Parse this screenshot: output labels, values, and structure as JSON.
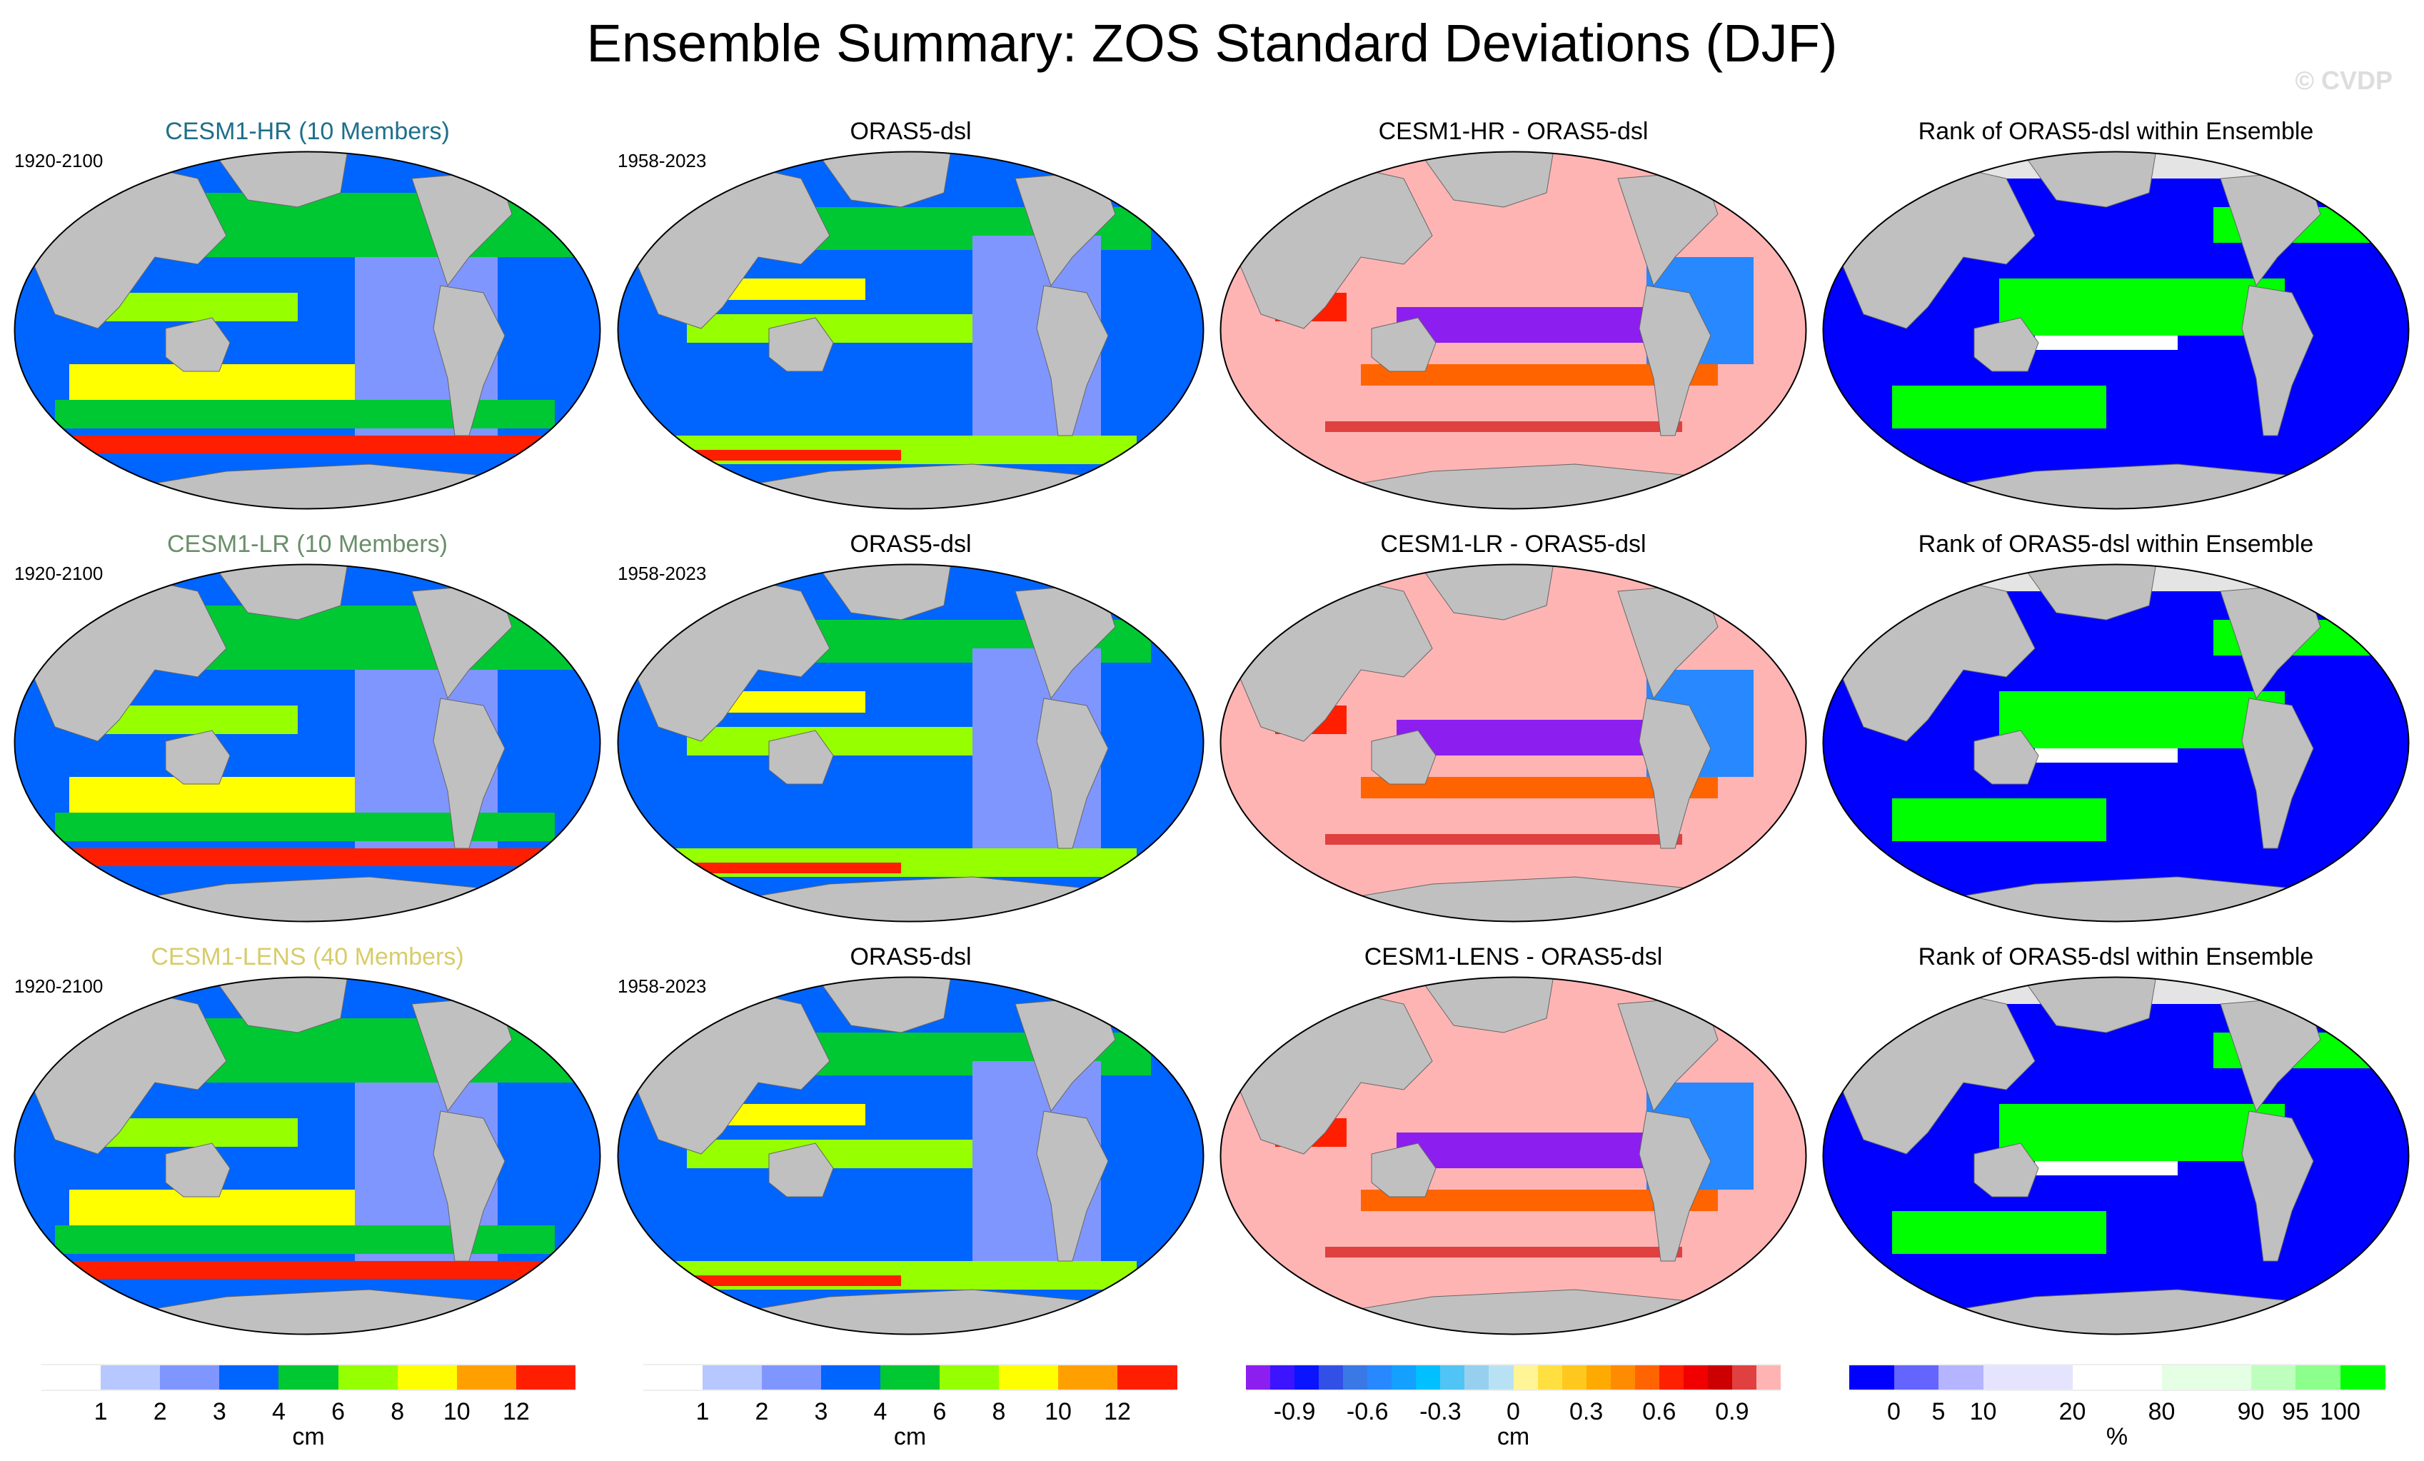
{
  "title": "Ensemble Summary: ZOS Standard Deviations (DJF)",
  "watermark": "© CVDP",
  "rows": [
    {
      "model": "CESM1-HR (10 Members)",
      "model_color": "#1f6f8b",
      "model_period": "1920-2100",
      "obs": "ORAS5-dsl",
      "obs_period": "1958-2023",
      "diff": "CESM1-HR - ORAS5-dsl",
      "rank": "Rank of ORAS5-dsl within Ensemble"
    },
    {
      "model": "CESM1-LR (10 Members)",
      "model_color": "#6a8f6a",
      "model_period": "1920-2100",
      "obs": "ORAS5-dsl",
      "obs_period": "1958-2023",
      "diff": "CESM1-LR - ORAS5-dsl",
      "rank": "Rank of ORAS5-dsl within Ensemble"
    },
    {
      "model": "CESM1-LENS (40 Members)",
      "model_color": "#d8cc6a",
      "model_period": "1920-2100",
      "obs": "ORAS5-dsl",
      "obs_period": "1958-2023",
      "diff": "CESM1-LENS - ORAS5-dsl",
      "rank": "Rank of ORAS5-dsl within Ensemble"
    }
  ],
  "chart_data": [
    {
      "type": "heatmap",
      "name": "std-colorbar",
      "unit": "cm",
      "colors": [
        "#ffffff",
        "#b6c8ff",
        "#8096ff",
        "#0064ff",
        "#00c832",
        "#96ff00",
        "#ffff00",
        "#ffa000",
        "#ff1e00"
      ],
      "labels": [
        "1",
        "2",
        "3",
        "4",
        "6",
        "8",
        "10",
        "12"
      ],
      "label_boundaries": [
        1,
        2,
        3,
        4,
        5,
        6,
        7,
        8
      ]
    },
    {
      "type": "heatmap",
      "name": "obs-colorbar",
      "unit": "cm",
      "colors": [
        "#ffffff",
        "#b6c8ff",
        "#8096ff",
        "#0064ff",
        "#00c832",
        "#96ff00",
        "#ffff00",
        "#ffa000",
        "#ff1e00"
      ],
      "labels": [
        "1",
        "2",
        "3",
        "4",
        "6",
        "8",
        "10",
        "12"
      ],
      "label_boundaries": [
        1,
        2,
        3,
        4,
        5,
        6,
        7,
        8
      ]
    },
    {
      "type": "heatmap",
      "name": "diff-colorbar",
      "unit": "cm",
      "colors": [
        "#8c1ef0",
        "#3c14ff",
        "#0a14ff",
        "#3250e6",
        "#3a78e6",
        "#2888ff",
        "#14a0ff",
        "#00c0ff",
        "#50c4f4",
        "#96d0ee",
        "#b8e2f4",
        "#fff596",
        "#ffe040",
        "#ffc81e",
        "#ffaa00",
        "#ff8c00",
        "#ff6400",
        "#ff2000",
        "#f00000",
        "#cc0000",
        "#e04040",
        "#ffb4b4"
      ],
      "labels": [
        "-0.9",
        "-0.6",
        "-0.3",
        "0",
        "0.3",
        "0.6",
        "0.9"
      ],
      "label_boundaries": [
        2,
        5,
        8,
        11,
        14,
        17,
        20
      ]
    },
    {
      "type": "heatmap",
      "name": "rank-colorbar",
      "unit": "%",
      "colors": [
        "#0000ff",
        "#6464ff",
        "#b4b4ff",
        "#e4e4ff",
        "#ffffff",
        "#e4ffe4",
        "#beffbe",
        "#8cff8c",
        "#00ff00"
      ],
      "widths": [
        1,
        1,
        1,
        2,
        2,
        2,
        1,
        1,
        1
      ],
      "labels": [
        "0",
        "5",
        "10",
        "20",
        "80",
        "90",
        "95",
        "100"
      ],
      "label_boundaries": [
        1,
        2,
        3,
        5,
        7,
        9,
        10,
        11
      ]
    }
  ]
}
